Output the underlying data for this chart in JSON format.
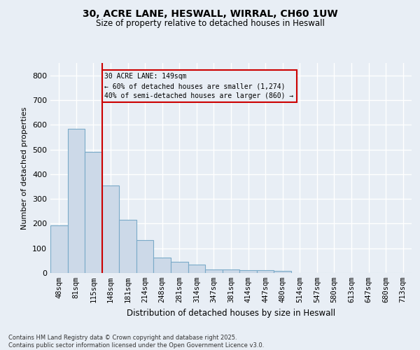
{
  "title1": "30, ACRE LANE, HESWALL, WIRRAL, CH60 1UW",
  "title2": "Size of property relative to detached houses in Heswall",
  "xlabel": "Distribution of detached houses by size in Heswall",
  "ylabel": "Number of detached properties",
  "categories": [
    "48sqm",
    "81sqm",
    "115sqm",
    "148sqm",
    "181sqm",
    "214sqm",
    "248sqm",
    "281sqm",
    "314sqm",
    "347sqm",
    "381sqm",
    "414sqm",
    "447sqm",
    "480sqm",
    "514sqm",
    "547sqm",
    "580sqm",
    "613sqm",
    "647sqm",
    "680sqm",
    "713sqm"
  ],
  "values": [
    193,
    585,
    490,
    355,
    215,
    132,
    63,
    45,
    33,
    15,
    14,
    11,
    10,
    8,
    0,
    0,
    0,
    0,
    0,
    0,
    0
  ],
  "bar_color": "#ccd9e8",
  "bar_edge_color": "#7aaac8",
  "vline_color": "#cc0000",
  "annotation_line1": "30 ACRE LANE: 149sqm",
  "annotation_line2": "← 60% of detached houses are smaller (1,274)",
  "annotation_line3": "40% of semi-detached houses are larger (860) →",
  "ylim": [
    0,
    850
  ],
  "yticks": [
    0,
    100,
    200,
    300,
    400,
    500,
    600,
    700,
    800
  ],
  "footnote1": "Contains HM Land Registry data © Crown copyright and database right 2025.",
  "footnote2": "Contains public sector information licensed under the Open Government Licence v3.0.",
  "bg_color": "#e8eef5",
  "grid_color": "#ffffff"
}
